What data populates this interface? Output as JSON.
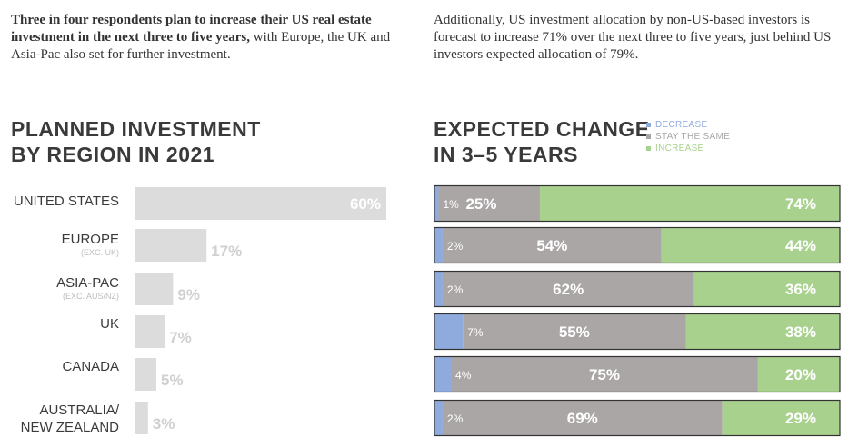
{
  "intro": {
    "left_bold": "Three in four respondents plan to increase their US real estate investment in the next three to five years,",
    "left_rest": " with Europe, the UK and Asia-Pac also set for further investment.",
    "right": "Additionally, US investment allocation by non-US-based investors is forecast to increase 71% over the next three to five years, just behind US investors expected allocation of 79%."
  },
  "left_heading": {
    "line1": "PLANNED INVESTMENT",
    "line2": "BY REGION IN 2021"
  },
  "right_heading": {
    "line1": "EXPECTED CHANGE",
    "line2": "IN 3–5 YEARS"
  },
  "legend": [
    {
      "label": "DECREASE",
      "color": "#8faadc"
    },
    {
      "label": "STAY THE SAME",
      "color": "#aaa6a6"
    },
    {
      "label": "INCREASE",
      "color": "#a9d18e"
    }
  ],
  "colors": {
    "bar": "#dcdcdc",
    "bar_label_inside": "#ffffff",
    "bar_label_outside": "#d0d0d0",
    "region_label": "#3a3a3a",
    "region_sub": "#bdbdbd",
    "decrease": "#8faadc",
    "stay": "#aaa6a6",
    "increase": "#a9d18e",
    "label_inside": "#ffffff",
    "outline": "#333333"
  },
  "chart_data": [
    {
      "type": "bar",
      "title": "PLANNED INVESTMENT BY REGION IN 2021",
      "orientation": "horizontal",
      "categories": [
        "UNITED STATES",
        "EUROPE",
        "ASIA-PAC",
        "UK",
        "CANADA",
        "AUSTRALIA/ NEW ZEALAND"
      ],
      "category_lines": [
        [
          "UNITED STATES"
        ],
        [
          "EUROPE"
        ],
        [
          "ASIA-PAC"
        ],
        [
          "UK"
        ],
        [
          "CANADA"
        ],
        [
          "AUSTRALIA/",
          "NEW ZEALAND"
        ]
      ],
      "category_notes": [
        "",
        "(EXC. UK)",
        "(EXC. AUS/NZ)",
        "",
        "",
        ""
      ],
      "values": [
        60,
        17,
        9,
        7,
        5,
        3
      ],
      "value_labels": [
        "60%",
        "17%",
        "9%",
        "7%",
        "5%",
        "3%"
      ],
      "xlim": [
        0,
        60
      ]
    },
    {
      "type": "bar",
      "title": "EXPECTED CHANGE IN 3–5 YEARS",
      "stacked": true,
      "orientation": "horizontal",
      "categories": [
        "UNITED STATES",
        "EUROPE",
        "ASIA-PAC",
        "UK",
        "CANADA",
        "AUSTRALIA/ NEW ZEALAND"
      ],
      "series": [
        {
          "name": "DECREASE",
          "values": [
            1,
            2,
            2,
            7,
            4,
            2
          ],
          "labels": [
            "1%",
            "2%",
            "2%",
            "7%",
            "4%",
            "2%"
          ]
        },
        {
          "name": "STAY THE SAME",
          "values": [
            25,
            54,
            62,
            55,
            75,
            69
          ],
          "labels": [
            "25%",
            "54%",
            "62%",
            "55%",
            "75%",
            "69%"
          ]
        },
        {
          "name": "INCREASE",
          "values": [
            74,
            44,
            36,
            38,
            20,
            29
          ],
          "labels": [
            "74%",
            "44%",
            "36%",
            "38%",
            "20%",
            "29%"
          ]
        }
      ]
    }
  ]
}
